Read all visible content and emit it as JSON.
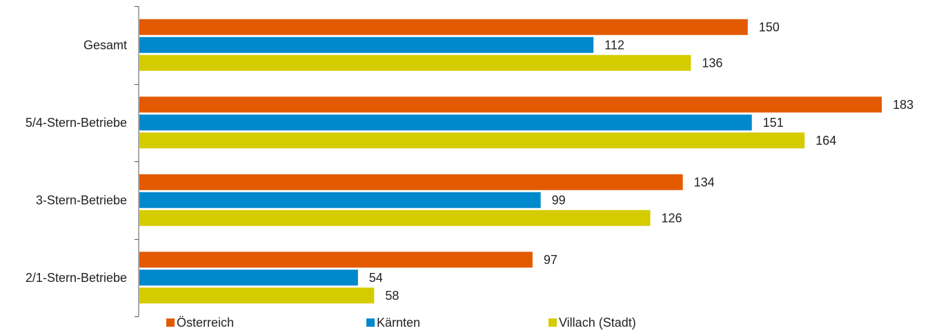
{
  "chart_data": {
    "type": "bar",
    "orientation": "horizontal",
    "title": "",
    "xlabel": "",
    "ylabel": "",
    "categories": [
      "Gesamt",
      "5/4-Stern-Betriebe",
      "3-Stern-Betriebe",
      "2/1-Stern-Betriebe"
    ],
    "series": [
      {
        "name": "Österreich",
        "color": "#E35A00",
        "values": [
          150,
          183,
          134,
          97
        ]
      },
      {
        "name": "Kärnten",
        "color": "#0088CC",
        "values": [
          112,
          151,
          99,
          54
        ]
      },
      {
        "name": "Villach (Stadt)",
        "color": "#D5CC00",
        "values": [
          136,
          164,
          126,
          58
        ]
      }
    ],
    "xlim": [
      0,
      183
    ],
    "grid": false,
    "legend_position": "bottom",
    "data_labels": true
  }
}
